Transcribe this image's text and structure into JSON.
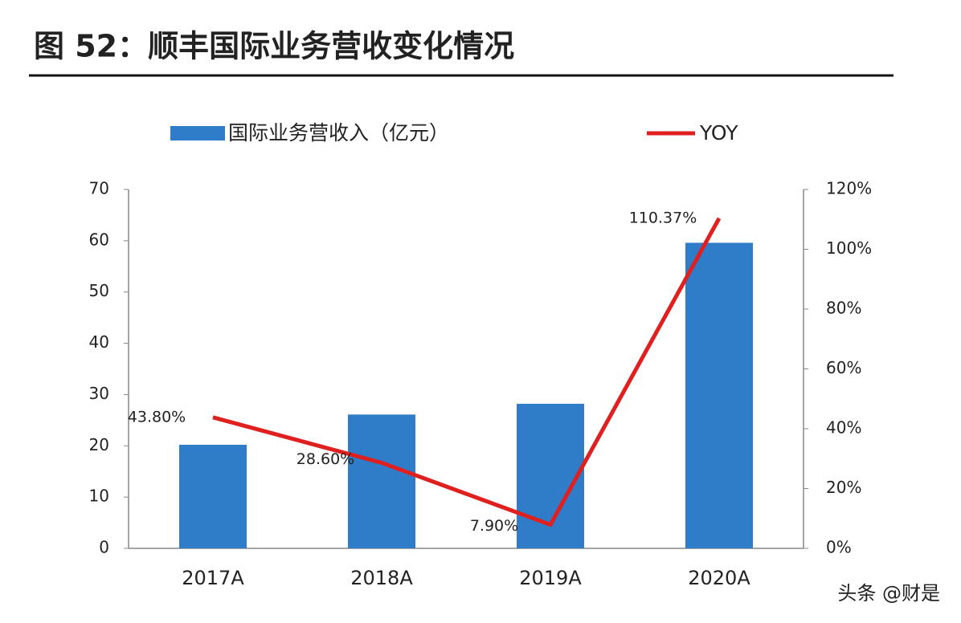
{
  "chart_data": {
    "type": "bar-line",
    "title": "图 52：顺丰国际业务营收变化情况",
    "categories": [
      "2017A",
      "2018A",
      "2019A",
      "2020A"
    ],
    "series": [
      {
        "name": "国际业务营收入（亿元）",
        "type": "bar",
        "color": "#2f7cc8",
        "axis": "y",
        "values": [
          20.2,
          26.1,
          28.2,
          59.6
        ]
      },
      {
        "name": "YOY",
        "type": "line",
        "color": "#e01f1f",
        "axis": "y2",
        "values": [
          43.8,
          28.6,
          7.9,
          110.37
        ],
        "value_labels": [
          "43.80%",
          "28.60%",
          "7.90%",
          "110.37%"
        ]
      }
    ],
    "ylim": [
      0,
      70
    ],
    "yticks": [
      0,
      10,
      20,
      30,
      40,
      50,
      60,
      70
    ],
    "y2lim": [
      0,
      120
    ],
    "y2ticks": [
      {
        "value": 0,
        "label": "0%"
      },
      {
        "value": 20,
        "label": "20%"
      },
      {
        "value": 40,
        "label": "40%"
      },
      {
        "value": 60,
        "label": "60%"
      },
      {
        "value": 80,
        "label": "80%"
      },
      {
        "value": 100,
        "label": "100%"
      },
      {
        "value": 120,
        "label": "120%"
      }
    ],
    "legend": "top",
    "watermark": "头条 @财是"
  }
}
